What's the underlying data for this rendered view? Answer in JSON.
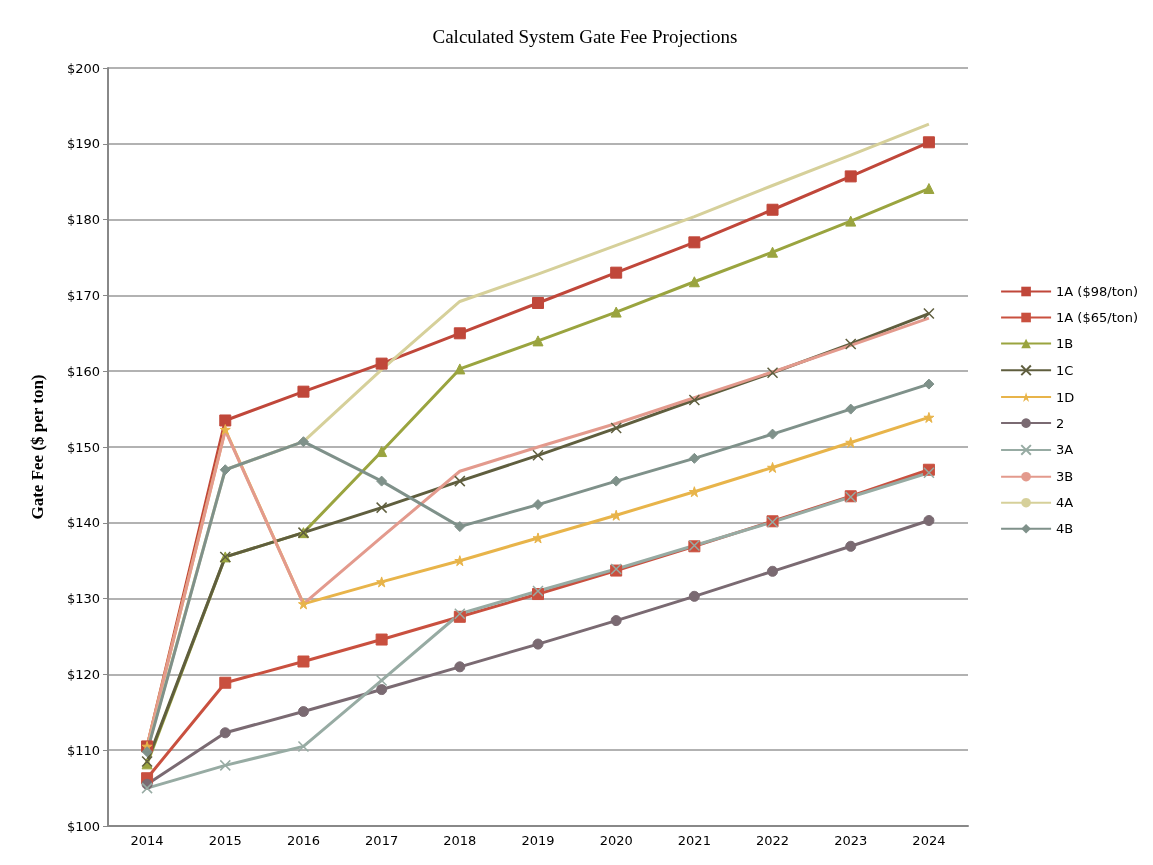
{
  "chart_data": {
    "type": "line",
    "title": "Calculated System Gate Fee Projections",
    "ylabel": "Gate Fee ($ per ton)",
    "categories": [
      "2014",
      "2015",
      "2016",
      "2017",
      "2018",
      "2019",
      "2020",
      "2021",
      "2022",
      "2023",
      "2024"
    ],
    "ylim": [
      100,
      200
    ],
    "yticks": [
      {
        "value": 100,
        "label": "$100"
      },
      {
        "value": 110,
        "label": "$110"
      },
      {
        "value": 120,
        "label": "$120"
      },
      {
        "value": 130,
        "label": "$130"
      },
      {
        "value": 140,
        "label": "$140"
      },
      {
        "value": 150,
        "label": "$150"
      },
      {
        "value": 160,
        "label": "$160"
      },
      {
        "value": 170,
        "label": "$170"
      },
      {
        "value": 180,
        "label": "$180"
      },
      {
        "value": 190,
        "label": "$190"
      },
      {
        "value": 200,
        "label": "$200"
      }
    ],
    "grid": "y",
    "legend": "right",
    "series": [
      {
        "name": "1A ($98/ton)",
        "color": "#c0473a",
        "marker": "square",
        "values": [
          110.5,
          153.5,
          157.3,
          161,
          165,
          169,
          173,
          177,
          181.3,
          185.7,
          190.2
        ]
      },
      {
        "name": "1A ($65/ton)",
        "color": "#c9503f",
        "marker": "square",
        "values": [
          106.3,
          118.9,
          121.7,
          124.6,
          127.6,
          130.6,
          133.7,
          136.9,
          140.2,
          143.5,
          147
        ]
      },
      {
        "name": "1B",
        "color": "#9aa43f",
        "marker": "triangle",
        "values": [
          108.2,
          135.5,
          138.7,
          149.4,
          160.3,
          164,
          167.8,
          171.8,
          175.7,
          179.8,
          184.1
        ]
      },
      {
        "name": "1C",
        "color": "#5f5e3e",
        "marker": "cross",
        "values": [
          108.5,
          135.5,
          138.7,
          142,
          145.5,
          148.9,
          152.5,
          156.2,
          159.8,
          163.6,
          167.6
        ]
      },
      {
        "name": "1D",
        "color": "#e8b44a",
        "marker": "star",
        "values": [
          110.5,
          152.3,
          129.3,
          132.2,
          135,
          138,
          141,
          144.1,
          147.3,
          150.6,
          153.9
        ]
      },
      {
        "name": "2",
        "color": "#7a6a72",
        "marker": "circle",
        "values": [
          105.5,
          112.3,
          115.1,
          118,
          121,
          124,
          127.1,
          130.3,
          133.6,
          136.9,
          140.3
        ]
      },
      {
        "name": "3A",
        "color": "#97aba3",
        "marker": "cross",
        "values": [
          105,
          108,
          110.5,
          119.2,
          128,
          131,
          133.9,
          137,
          140.1,
          143.4,
          146.6
        ]
      },
      {
        "name": "3B",
        "color": "#e39a8d",
        "marker": "none",
        "values": [
          110.5,
          152.2,
          129.3,
          138.1,
          146.8,
          150,
          153.1,
          156.5,
          159.9,
          163.4,
          167
        ]
      },
      {
        "name": "4A",
        "color": "#d6d09a",
        "marker": "none",
        "values": [
          110,
          147,
          150.7,
          160.2,
          169.2,
          172.8,
          176.6,
          180.4,
          184.5,
          188.5,
          192.6
        ]
      },
      {
        "name": "4B",
        "color": "#7f918a",
        "marker": "diamond",
        "values": [
          109.8,
          147,
          150.7,
          145.5,
          139.5,
          142.4,
          145.5,
          148.5,
          151.7,
          155,
          158.3
        ]
      }
    ]
  }
}
